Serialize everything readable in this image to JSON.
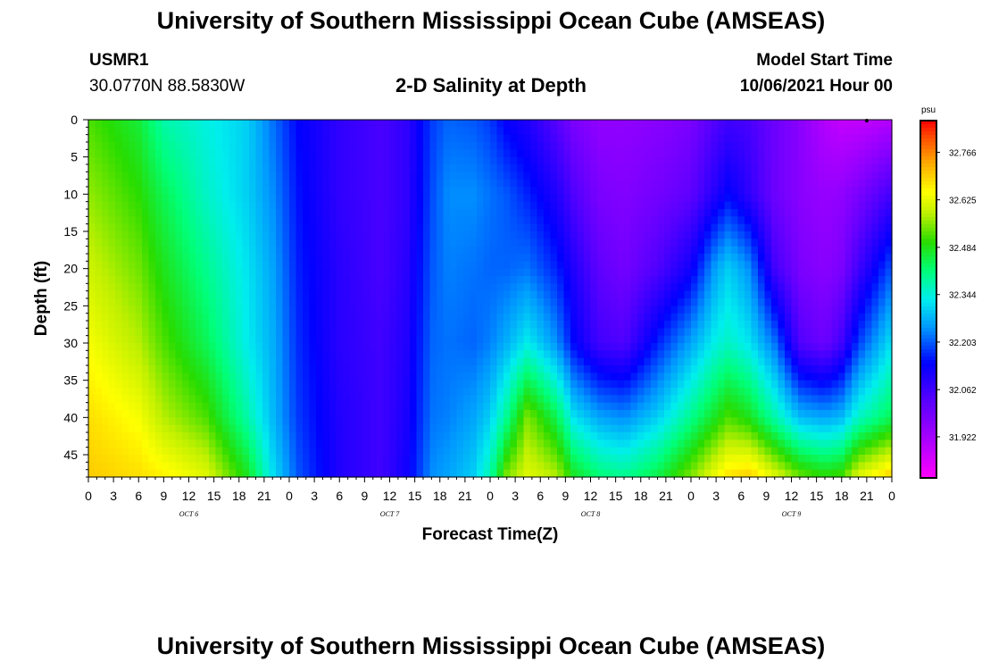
{
  "header": {
    "title": "University of Southern Mississippi Ocean Cube (AMSEAS)",
    "station_id": "USMR1",
    "coordinates": "30.0770N  88.5830W",
    "subtitle": "2-D Salinity at Depth",
    "model_start_label": "Model Start Time",
    "model_start_value": "10/06/2021 Hour 00"
  },
  "footer": {
    "title": "University of Southern Mississippi Ocean Cube (AMSEAS)"
  },
  "chart_data": {
    "type": "heatmap",
    "title": "2-D Salinity at Depth",
    "xlabel": "Forecast Time(Z)",
    "ylabel": "Depth (ft)",
    "x_range_hours": [
      0,
      96
    ],
    "y_range_ft": [
      0,
      48
    ],
    "x_tick_labels": [
      "0",
      "3",
      "6",
      "9",
      "12",
      "15",
      "18",
      "21",
      "0",
      "3",
      "6",
      "9",
      "12",
      "15",
      "18",
      "21",
      "0",
      "3",
      "6",
      "9",
      "12",
      "15",
      "18",
      "21",
      "0",
      "3",
      "6",
      "9",
      "12",
      "15",
      "18",
      "21",
      "0"
    ],
    "x_date_labels": [
      {
        "label": "OCT 6",
        "hour": 12
      },
      {
        "label": "OCT 7",
        "hour": 36
      },
      {
        "label": "OCT 8",
        "hour": 60
      },
      {
        "label": "OCT 9",
        "hour": 84
      }
    ],
    "y_ticks": [
      0,
      5,
      10,
      15,
      20,
      25,
      30,
      35,
      40,
      45
    ],
    "colorbar": {
      "unit": "psu",
      "min": 31.8,
      "max": 32.86,
      "tick_values": [
        32.766,
        32.625,
        32.484,
        32.344,
        32.203,
        32.062,
        31.922
      ],
      "tick_labels": [
        "32.766",
        "32.625",
        "32.484",
        "32.344",
        "32.203",
        "32.062",
        "31.922"
      ]
    },
    "salinity_profiles_hours": [
      0,
      6,
      9,
      14,
      19,
      22,
      25,
      30,
      35,
      38,
      41,
      43,
      46,
      48,
      50,
      52.5,
      56,
      58,
      61,
      64,
      68,
      72,
      75,
      76.5,
      79,
      82,
      85,
      88,
      90,
      92,
      96
    ],
    "salinity_profiles_psu": [
      [
        32.52,
        32.56,
        32.6,
        32.64,
        32.68,
        32.7
      ],
      [
        32.46,
        32.5,
        32.54,
        32.58,
        32.64,
        32.68
      ],
      [
        32.38,
        32.44,
        32.48,
        32.52,
        32.58,
        32.66
      ],
      [
        32.34,
        32.36,
        32.4,
        32.44,
        32.52,
        32.62
      ],
      [
        32.3,
        32.3,
        32.32,
        32.33,
        32.38,
        32.48
      ],
      [
        32.22,
        32.24,
        32.26,
        32.27,
        32.28,
        32.32
      ],
      [
        32.14,
        32.15,
        32.16,
        32.17,
        32.18,
        32.2
      ],
      [
        32.08,
        32.08,
        32.09,
        32.09,
        32.1,
        32.1
      ],
      [
        32.05,
        32.05,
        32.05,
        32.06,
        32.06,
        32.06
      ],
      [
        32.08,
        32.08,
        32.09,
        32.1,
        32.11,
        32.12
      ],
      [
        32.18,
        32.19,
        32.2,
        32.21,
        32.22,
        32.24
      ],
      [
        32.21,
        32.24,
        32.23,
        32.22,
        32.23,
        32.26
      ],
      [
        32.2,
        32.24,
        32.22,
        32.21,
        32.26,
        32.3
      ],
      [
        32.18,
        32.22,
        32.21,
        32.23,
        32.3,
        32.38
      ],
      [
        32.13,
        32.2,
        32.21,
        32.27,
        32.4,
        32.55
      ],
      [
        32.1,
        32.16,
        32.22,
        32.33,
        32.55,
        32.62
      ],
      [
        32.03,
        32.1,
        32.16,
        32.24,
        32.44,
        32.58
      ],
      [
        31.98,
        32.04,
        32.1,
        32.14,
        32.32,
        32.48
      ],
      [
        31.95,
        31.98,
        32.02,
        32.06,
        32.26,
        32.42
      ],
      [
        31.95,
        31.97,
        31.99,
        32.04,
        32.24,
        32.4
      ],
      [
        31.96,
        31.99,
        32.04,
        32.16,
        32.3,
        32.45
      ],
      [
        31.98,
        32.02,
        32.12,
        32.26,
        32.4,
        32.55
      ],
      [
        32.04,
        32.1,
        32.26,
        32.34,
        32.48,
        32.64
      ],
      [
        32.06,
        32.14,
        32.3,
        32.36,
        32.52,
        32.68
      ],
      [
        32.05,
        32.08,
        32.24,
        32.32,
        32.48,
        32.7
      ],
      [
        32.0,
        32.0,
        32.06,
        32.22,
        32.38,
        32.62
      ],
      [
        31.96,
        31.96,
        31.98,
        32.04,
        32.28,
        32.54
      ],
      [
        31.9,
        31.94,
        31.96,
        32.0,
        32.26,
        32.5
      ],
      [
        31.88,
        31.95,
        31.98,
        32.06,
        32.28,
        32.52
      ],
      [
        31.88,
        31.98,
        32.06,
        32.18,
        32.36,
        32.62
      ],
      [
        31.9,
        32.06,
        32.2,
        32.32,
        32.44,
        32.7
      ]
    ],
    "salinity_profile_depths_ft": [
      0,
      10,
      20,
      30,
      40,
      48
    ]
  }
}
